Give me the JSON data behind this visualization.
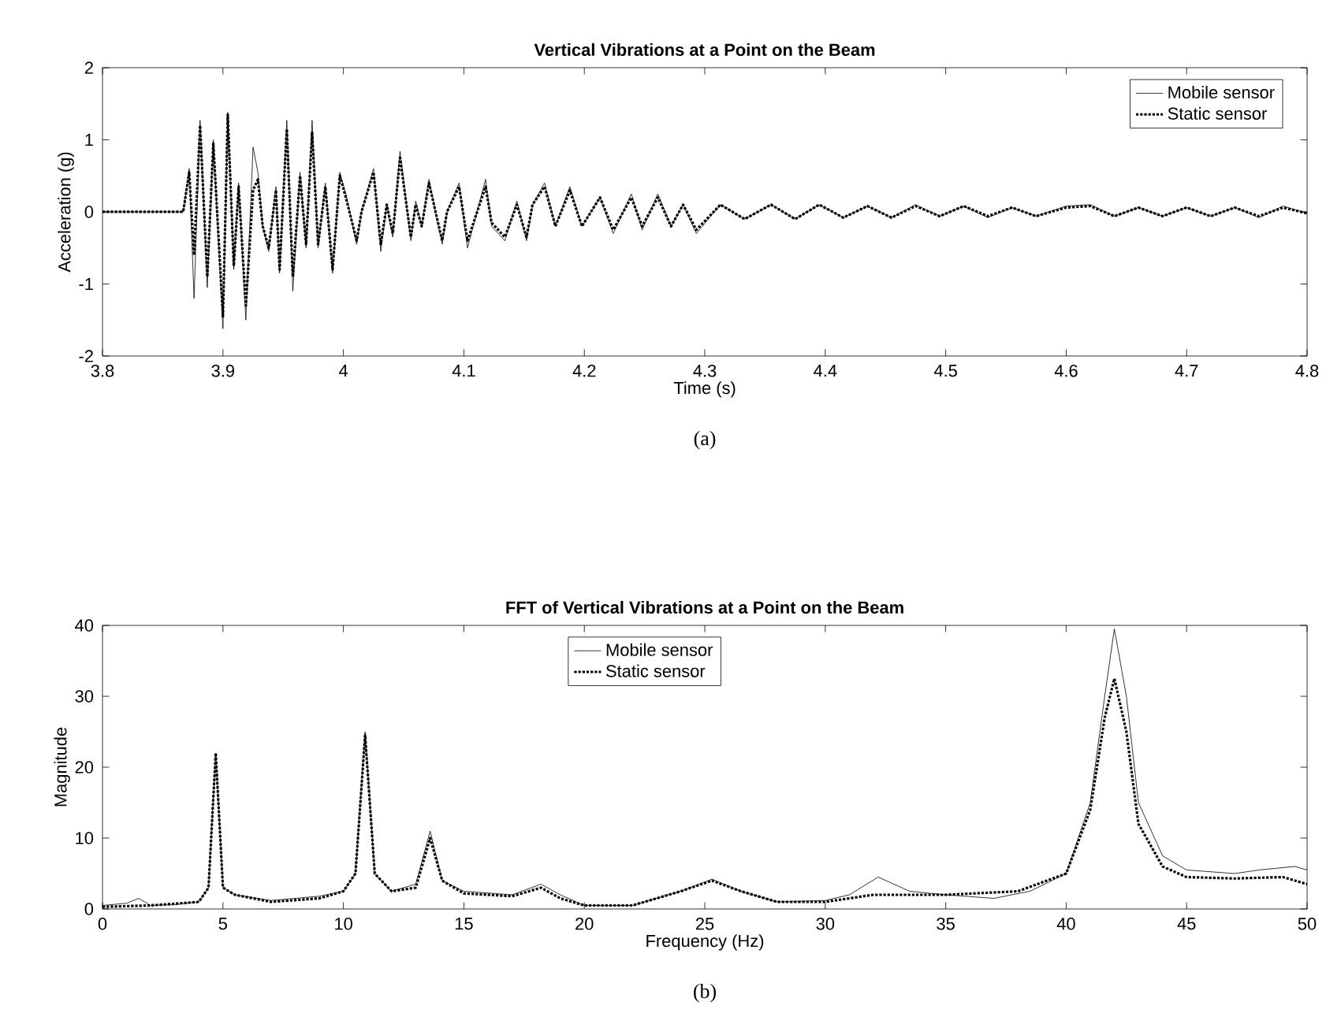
{
  "chart_data": [
    {
      "type": "line",
      "title": "Vertical Vibrations at a Point on the Beam",
      "xlabel": "Time (s)",
      "ylabel": "Acceleration (g)",
      "annotations": [
        "(a)"
      ],
      "xlim": [
        3.8,
        4.8
      ],
      "ylim": [
        -2,
        2
      ],
      "xticks": [
        3.8,
        3.9,
        4,
        4.1,
        4.2,
        4.3,
        4.4,
        4.5,
        4.6,
        4.7,
        4.8
      ],
      "yticks": [
        -2,
        -1,
        0,
        1,
        2
      ],
      "grid": false,
      "legend": "top right",
      "series": [
        {
          "name": "Mobile sensor",
          "color": "#000000",
          "line_style": "solid",
          "x": [
            3.8,
            3.867,
            3.872,
            3.876,
            3.881,
            3.887,
            3.892,
            3.9,
            3.904,
            3.909,
            3.913,
            3.919,
            3.925,
            3.929,
            3.933,
            3.938,
            3.944,
            3.947,
            3.953,
            3.958,
            3.964,
            3.969,
            3.974,
            3.979,
            3.985,
            3.991,
            3.997,
            4.002,
            4.011,
            4.015,
            4.025,
            4.031,
            4.036,
            4.041,
            4.047,
            4.056,
            4.06,
            4.065,
            4.071,
            4.082,
            4.086,
            4.096,
            4.103,
            4.118,
            4.123,
            4.134,
            4.144,
            4.152,
            4.157,
            4.167,
            4.176,
            4.188,
            4.198,
            4.213,
            4.224,
            4.239,
            4.248,
            4.261,
            4.272,
            4.282,
            4.293,
            4.313,
            4.333,
            4.355,
            4.375,
            4.395,
            4.415,
            4.435,
            4.455,
            4.475,
            4.495,
            4.515,
            4.535,
            4.555,
            4.575,
            4.6,
            4.62,
            4.64,
            4.66,
            4.68,
            4.7,
            4.72,
            4.74,
            4.76,
            4.78,
            4.8
          ],
          "values": [
            0,
            0,
            0.6,
            -1.2,
            1.27,
            -1.05,
            1.0,
            -1.62,
            1.38,
            -0.8,
            0.4,
            -1.5,
            0.9,
            0.55,
            -0.2,
            -0.55,
            0.35,
            -0.85,
            1.27,
            -1.1,
            0.55,
            -0.5,
            1.27,
            -0.5,
            0.4,
            -0.85,
            0.55,
            0.25,
            -0.45,
            0.0,
            0.6,
            -0.55,
            0.1,
            -0.35,
            0.84,
            -0.4,
            0.15,
            -0.2,
            0.45,
            -0.45,
            0.0,
            0.4,
            -0.5,
            0.45,
            -0.2,
            -0.4,
            0.15,
            -0.4,
            0.1,
            0.4,
            -0.2,
            0.35,
            -0.2,
            0.2,
            -0.3,
            0.25,
            -0.25,
            0.25,
            -0.2,
            0.1,
            -0.3,
            0.1,
            -0.1,
            0.1,
            -0.1,
            0.1,
            -0.08,
            0.08,
            -0.08,
            0.1,
            -0.06,
            0.08,
            -0.08,
            0.06,
            -0.06,
            0.08,
            0.1,
            -0.06,
            0.06,
            -0.06,
            0.06,
            -0.06,
            0.06,
            -0.08,
            0.08,
            -0.02
          ]
        },
        {
          "name": "Static sensor",
          "color": "#000000",
          "line_style": "dotted",
          "x": [
            3.8,
            3.867,
            3.872,
            3.876,
            3.881,
            3.887,
            3.892,
            3.9,
            3.904,
            3.909,
            3.913,
            3.919,
            3.925,
            3.929,
            3.933,
            3.938,
            3.944,
            3.947,
            3.953,
            3.958,
            3.964,
            3.969,
            3.974,
            3.979,
            3.985,
            3.991,
            3.997,
            4.002,
            4.011,
            4.015,
            4.025,
            4.031,
            4.036,
            4.041,
            4.047,
            4.056,
            4.06,
            4.065,
            4.071,
            4.082,
            4.086,
            4.096,
            4.103,
            4.118,
            4.123,
            4.134,
            4.144,
            4.152,
            4.157,
            4.167,
            4.176,
            4.188,
            4.198,
            4.213,
            4.224,
            4.239,
            4.248,
            4.261,
            4.272,
            4.282,
            4.293,
            4.313,
            4.333,
            4.355,
            4.375,
            4.395,
            4.415,
            4.435,
            4.455,
            4.475,
            4.495,
            4.515,
            4.535,
            4.555,
            4.575,
            4.6,
            4.62,
            4.64,
            4.66,
            4.68,
            4.7,
            4.72,
            4.74,
            4.76,
            4.78,
            4.8
          ],
          "values": [
            0,
            0,
            0.55,
            -0.6,
            1.2,
            -0.9,
            0.95,
            -1.45,
            1.35,
            -0.75,
            0.35,
            -1.3,
            0.3,
            0.45,
            -0.2,
            -0.5,
            0.3,
            -0.8,
            1.15,
            -0.9,
            0.5,
            -0.45,
            1.1,
            -0.45,
            0.35,
            -0.8,
            0.5,
            0.2,
            -0.4,
            0.0,
            0.55,
            -0.45,
            0.1,
            -0.3,
            0.75,
            -0.35,
            0.1,
            -0.2,
            0.4,
            -0.4,
            0.0,
            0.35,
            -0.4,
            0.35,
            -0.15,
            -0.35,
            0.1,
            -0.35,
            0.1,
            0.35,
            -0.2,
            0.3,
            -0.2,
            0.2,
            -0.25,
            0.2,
            -0.2,
            0.2,
            -0.2,
            0.1,
            -0.25,
            0.1,
            -0.1,
            0.1,
            -0.1,
            0.1,
            -0.08,
            0.08,
            -0.08,
            0.08,
            -0.06,
            0.08,
            -0.06,
            0.06,
            -0.06,
            0.06,
            0.08,
            -0.06,
            0.06,
            -0.06,
            0.06,
            -0.06,
            0.06,
            -0.06,
            0.06,
            -0.02
          ]
        }
      ]
    },
    {
      "type": "line",
      "title": "FFT of Vertical Vibrations at a Point on the Beam",
      "xlabel": "Frequency (Hz)",
      "ylabel": "Magnitude",
      "annotations": [
        "(b)"
      ],
      "xlim": [
        0,
        50
      ],
      "ylim": [
        0,
        40
      ],
      "xticks": [
        0,
        5,
        10,
        15,
        20,
        25,
        30,
        35,
        40,
        45,
        50
      ],
      "yticks": [
        0,
        10,
        20,
        30,
        40
      ],
      "grid": false,
      "legend": "top",
      "series": [
        {
          "name": "Mobile sensor",
          "color": "#000000",
          "line_style": "solid",
          "x": [
            0,
            1,
            1.5,
            2,
            3,
            4,
            4.4,
            4.7,
            5.0,
            5.5,
            7,
            9,
            10,
            10.5,
            10.9,
            11.3,
            12,
            13,
            13.6,
            14.1,
            15,
            17,
            18.2,
            19,
            20,
            22,
            24,
            25.3,
            26.5,
            28,
            30,
            31,
            32.2,
            33.5,
            35,
            37,
            38.5,
            40,
            41,
            41.6,
            42,
            42.5,
            43,
            44,
            45,
            47,
            48,
            49.5,
            50
          ],
          "values": [
            0.5,
            0.8,
            1.5,
            0.5,
            0.6,
            1.0,
            3,
            22,
            3,
            2.0,
            1.2,
            1.8,
            2.5,
            5,
            25,
            5,
            2.5,
            3.5,
            11,
            4,
            2.5,
            2,
            3.5,
            2,
            0.5,
            0.5,
            2.5,
            4.2,
            2.5,
            1,
            1.2,
            2,
            4.5,
            2.5,
            2,
            1.5,
            2.5,
            5,
            15,
            30,
            39.5,
            30,
            15,
            7.5,
            5.5,
            5,
            5.5,
            6,
            5.5
          ]
        },
        {
          "name": "Static sensor",
          "color": "#000000",
          "line_style": "dotted",
          "x": [
            0,
            2,
            4,
            4.4,
            4.7,
            5,
            5.5,
            7,
            9,
            10,
            10.5,
            10.9,
            11.3,
            12,
            13,
            13.6,
            14.1,
            15,
            17,
            18.2,
            19,
            20,
            22,
            24,
            25.3,
            26.5,
            28,
            30,
            32,
            35,
            38,
            40,
            41,
            41.6,
            42,
            42.5,
            43,
            44,
            45,
            47,
            49,
            50
          ],
          "values": [
            0.3,
            0.5,
            1,
            3,
            22,
            3,
            2,
            1,
            1.5,
            2.5,
            5,
            24.5,
            5,
            2.5,
            3,
            10,
            4,
            2.2,
            1.8,
            3,
            1.5,
            0.5,
            0.5,
            2.5,
            4,
            2.5,
            1,
            1,
            2,
            2.0,
            2.5,
            5,
            14,
            27,
            32.5,
            25,
            12,
            6,
            4.5,
            4.3,
            4.5,
            3.5
          ]
        }
      ]
    }
  ]
}
